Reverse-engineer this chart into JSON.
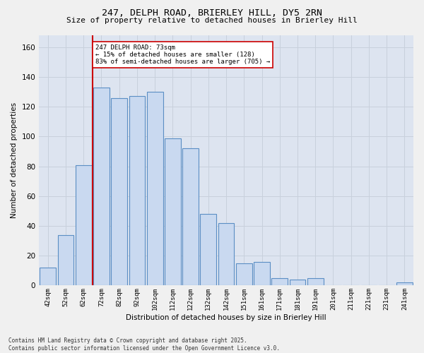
{
  "title_line1": "247, DELPH ROAD, BRIERLEY HILL, DY5 2RN",
  "title_line2": "Size of property relative to detached houses in Brierley Hill",
  "xlabel": "Distribution of detached houses by size in Brierley Hill",
  "ylabel": "Number of detached properties",
  "categories": [
    "42sqm",
    "52sqm",
    "62sqm",
    "72sqm",
    "82sqm",
    "92sqm",
    "102sqm",
    "112sqm",
    "122sqm",
    "132sqm",
    "142sqm",
    "151sqm",
    "161sqm",
    "171sqm",
    "181sqm",
    "191sqm",
    "201sqm",
    "211sqm",
    "221sqm",
    "231sqm",
    "241sqm"
  ],
  "bar_heights": [
    12,
    34,
    81,
    133,
    126,
    127,
    130,
    99,
    92,
    48,
    42,
    15,
    16,
    5,
    4,
    5,
    0,
    0,
    0,
    0,
    2
  ],
  "bar_color": "#c9d9f0",
  "bar_edge_color": "#5b8ec4",
  "vline_x": 1,
  "vline_color": "#cc0000",
  "annotation_text": "247 DELPH ROAD: 73sqm\n← 15% of detached houses are smaller (128)\n83% of semi-detached houses are larger (705) →",
  "annotation_box_color": "#ffffff",
  "annotation_border_color": "#cc0000",
  "ylim": [
    0,
    168
  ],
  "yticks": [
    0,
    20,
    40,
    60,
    80,
    100,
    120,
    140,
    160
  ],
  "grid_color": "#c8d0dc",
  "plot_bg_color": "#dde4f0",
  "fig_bg_color": "#f0f0f0",
  "footnote": "Contains HM Land Registry data © Crown copyright and database right 2025.\nContains public sector information licensed under the Open Government Licence v3.0."
}
